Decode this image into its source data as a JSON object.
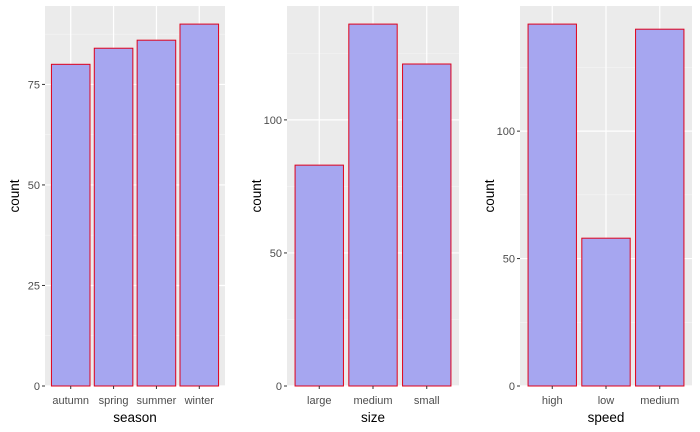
{
  "chart_data": [
    {
      "type": "bar",
      "xlabel": "season",
      "ylabel": "count",
      "categories": [
        "autumn",
        "spring",
        "summer",
        "winter"
      ],
      "values": [
        80,
        84,
        86,
        90
      ],
      "ylim": [
        0,
        94.5
      ],
      "yticks": [
        0,
        25,
        50,
        75
      ],
      "fill_color": "#a6a6f0",
      "stroke_color": "#e0001a",
      "panel_background": "#ebebeb",
      "grid": true,
      "legend": "none"
    },
    {
      "type": "bar",
      "xlabel": "size",
      "ylabel": "count",
      "categories": [
        "large",
        "medium",
        "small"
      ],
      "values": [
        83,
        136,
        121
      ],
      "ylim": [
        0,
        142.8
      ],
      "yticks": [
        0,
        50,
        100
      ],
      "fill_color": "#a6a6f0",
      "stroke_color": "#e0001a",
      "panel_background": "#ebebeb",
      "grid": true,
      "legend": "none"
    },
    {
      "type": "bar",
      "xlabel": "speed",
      "ylabel": "count",
      "categories": [
        "high",
        "low",
        "medium"
      ],
      "values": [
        142,
        58,
        140
      ],
      "ylim": [
        0,
        149.1
      ],
      "yticks": [
        0,
        50,
        100
      ],
      "fill_color": "#a6a6f0",
      "stroke_color": "#e0001a",
      "panel_background": "#ebebeb",
      "grid": true,
      "legend": "none"
    }
  ]
}
